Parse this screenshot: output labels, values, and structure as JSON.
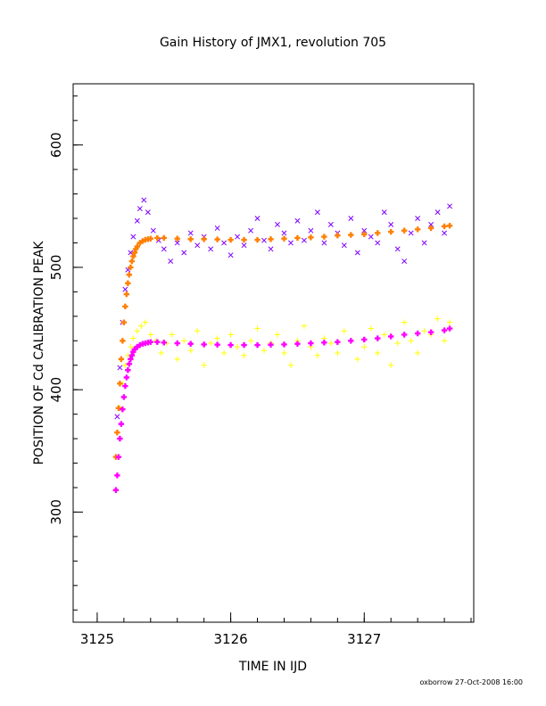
{
  "chart_data": {
    "type": "scatter",
    "title": "Gain History of JMX1, revolution 705",
    "xlabel": "TIME IN IJD",
    "ylabel": "POSITION OF Cd CALIBRATION PEAK",
    "xlim": [
      3124.82,
      3127.82
    ],
    "ylim": [
      210,
      650
    ],
    "x_ticks": [
      3125,
      3126,
      3127
    ],
    "x_tick_labels": [
      "3125",
      "3126",
      "3127"
    ],
    "y_ticks": [
      300,
      400,
      500,
      600
    ],
    "y_tick_labels": [
      "300",
      "400",
      "500",
      "600"
    ],
    "x_minor_step": 0.2,
    "y_minor_step": 20,
    "grid": false,
    "legend": "none",
    "series": [
      {
        "marker": "x",
        "color": "#7f00ff",
        "x": [
          3125.15,
          3125.17,
          3125.19,
          3125.21,
          3125.23,
          3125.25,
          3125.27,
          3125.3,
          3125.32,
          3125.35,
          3125.38,
          3125.42,
          3125.46,
          3125.5,
          3125.55,
          3125.6,
          3125.65,
          3125.7,
          3125.75,
          3125.8,
          3125.85,
          3125.9,
          3125.95,
          3126.0,
          3126.05,
          3126.1,
          3126.15,
          3126.2,
          3126.25,
          3126.3,
          3126.35,
          3126.4,
          3126.45,
          3126.5,
          3126.55,
          3126.6,
          3126.65,
          3126.7,
          3126.75,
          3126.8,
          3126.85,
          3126.9,
          3126.95,
          3127.0,
          3127.05,
          3127.1,
          3127.15,
          3127.2,
          3127.25,
          3127.3,
          3127.35,
          3127.4,
          3127.45,
          3127.5,
          3127.55,
          3127.6,
          3127.64
        ],
        "y": [
          378,
          418,
          455,
          482,
          498,
          512,
          525,
          538,
          548,
          555,
          545,
          530,
          522,
          515,
          505,
          520,
          512,
          528,
          518,
          525,
          515,
          532,
          520,
          510,
          525,
          518,
          530,
          540,
          522,
          515,
          535,
          528,
          520,
          538,
          522,
          530,
          545,
          520,
          535,
          528,
          518,
          540,
          512,
          530,
          525,
          520,
          545,
          535,
          515,
          505,
          528,
          540,
          520,
          535,
          545,
          528,
          550
        ]
      },
      {
        "marker": "+",
        "color": "#ffff00",
        "x": [
          3125.15,
          3125.17,
          3125.19,
          3125.21,
          3125.23,
          3125.25,
          3125.27,
          3125.3,
          3125.33,
          3125.36,
          3125.4,
          3125.44,
          3125.48,
          3125.52,
          3125.56,
          3125.6,
          3125.65,
          3125.7,
          3125.75,
          3125.8,
          3125.85,
          3125.9,
          3125.95,
          3126.0,
          3126.05,
          3126.1,
          3126.15,
          3126.2,
          3126.25,
          3126.3,
          3126.35,
          3126.4,
          3126.45,
          3126.5,
          3126.55,
          3126.6,
          3126.65,
          3126.7,
          3126.75,
          3126.8,
          3126.85,
          3126.9,
          3126.95,
          3127.0,
          3127.05,
          3127.1,
          3127.15,
          3127.2,
          3127.25,
          3127.3,
          3127.35,
          3127.4,
          3127.45,
          3127.5,
          3127.55,
          3127.6,
          3127.64
        ],
        "y": [
          365,
          385,
          405,
          420,
          428,
          435,
          442,
          448,
          452,
          455,
          445,
          440,
          430,
          438,
          445,
          425,
          440,
          432,
          448,
          420,
          438,
          442,
          430,
          445,
          435,
          428,
          440,
          450,
          432,
          438,
          445,
          430,
          420,
          440,
          452,
          435,
          428,
          442,
          438,
          430,
          448,
          440,
          425,
          435,
          450,
          430,
          445,
          420,
          438,
          455,
          440,
          430,
          448,
          445,
          458,
          440,
          455
        ]
      },
      {
        "marker": "+",
        "color": "#ff7f00",
        "x": [
          3125.14,
          3125.15,
          3125.16,
          3125.17,
          3125.18,
          3125.19,
          3125.2,
          3125.21,
          3125.22,
          3125.23,
          3125.24,
          3125.25,
          3125.26,
          3125.27,
          3125.28,
          3125.29,
          3125.3,
          3125.32,
          3125.34,
          3125.36,
          3125.38,
          3125.4,
          3125.45,
          3125.5,
          3125.6,
          3125.7,
          3125.8,
          3125.9,
          3126.0,
          3126.1,
          3126.2,
          3126.3,
          3126.4,
          3126.5,
          3126.6,
          3126.7,
          3126.8,
          3126.9,
          3127.0,
          3127.1,
          3127.2,
          3127.3,
          3127.4,
          3127.5,
          3127.6,
          3127.64
        ],
        "y": [
          345,
          365,
          385,
          405,
          425,
          440,
          455,
          468,
          478,
          487,
          494,
          500,
          505,
          509,
          512,
          515,
          517,
          520,
          521.5,
          522.5,
          523,
          523.5,
          524,
          524,
          523.5,
          523,
          523,
          522.8,
          522.5,
          522.5,
          522.5,
          523,
          523.5,
          524,
          524.5,
          525,
          526,
          526.5,
          527,
          528,
          529,
          530,
          531,
          532,
          533.5,
          534
        ]
      },
      {
        "marker": "+",
        "color": "#ff00ff",
        "x": [
          3125.14,
          3125.15,
          3125.16,
          3125.17,
          3125.18,
          3125.19,
          3125.2,
          3125.21,
          3125.22,
          3125.23,
          3125.24,
          3125.25,
          3125.26,
          3125.27,
          3125.28,
          3125.3,
          3125.32,
          3125.34,
          3125.36,
          3125.38,
          3125.4,
          3125.45,
          3125.5,
          3125.6,
          3125.7,
          3125.8,
          3125.9,
          3126.0,
          3126.1,
          3126.2,
          3126.3,
          3126.4,
          3126.5,
          3126.6,
          3126.7,
          3126.8,
          3126.9,
          3127.0,
          3127.1,
          3127.2,
          3127.3,
          3127.4,
          3127.5,
          3127.6,
          3127.64
        ],
        "y": [
          318,
          330,
          345,
          360,
          372,
          384,
          394,
          403,
          410,
          416,
          421,
          425,
          428,
          431,
          433,
          435,
          436.5,
          437.5,
          438,
          438.5,
          439,
          439,
          438.5,
          438,
          437.5,
          437,
          436.8,
          436.5,
          436.5,
          436.5,
          436.8,
          437,
          437.5,
          438,
          438.5,
          439,
          440,
          441,
          442,
          443.5,
          445,
          446,
          447,
          448.5,
          450
        ]
      }
    ]
  },
  "footer": {
    "credit": "oxborrow 27-Oct-2008 16:00"
  }
}
